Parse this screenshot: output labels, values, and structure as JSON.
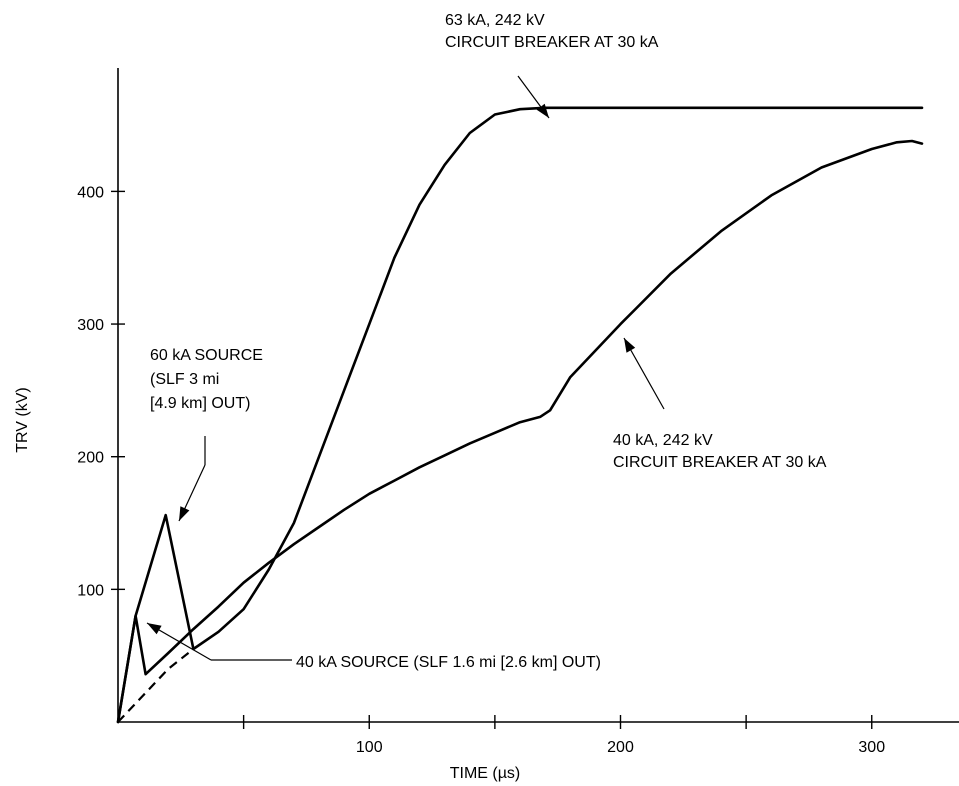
{
  "chart_data": {
    "type": "line",
    "title": "",
    "xlabel": "TIME  (µs)",
    "ylabel": "TRV  (kV)",
    "xlim": [
      0,
      320
    ],
    "ylim": [
      0,
      470
    ],
    "x_ticks": [
      50,
      100,
      150,
      200,
      250,
      300
    ],
    "x_tick_labels": [
      "100",
      "200",
      "300"
    ],
    "x_tick_label_values": [
      100,
      200,
      300
    ],
    "y_ticks": [
      100,
      200,
      300,
      400
    ],
    "y_tick_labels": [
      "100",
      "200",
      "300",
      "400"
    ],
    "grid": false,
    "series": [
      {
        "id": "s63",
        "style": "solid",
        "x": [
          0,
          7,
          19,
          30,
          40,
          50,
          60,
          70,
          80,
          90,
          100,
          110,
          120,
          130,
          140,
          150,
          160,
          170,
          180,
          200,
          220,
          250,
          280,
          310,
          320
        ],
        "y": [
          0,
          80,
          156,
          55,
          68,
          85,
          115,
          150,
          200,
          250,
          300,
          350,
          390,
          420,
          444,
          458,
          462,
          463,
          463,
          463,
          463,
          463,
          463,
          463,
          463
        ]
      },
      {
        "id": "s40",
        "style": "solid",
        "x": [
          0,
          7,
          11,
          20,
          30,
          40,
          50,
          60,
          70,
          80,
          90,
          100,
          110,
          120,
          130,
          140,
          150,
          160,
          168,
          172,
          180,
          190,
          200,
          220,
          240,
          260,
          280,
          300,
          310,
          316,
          320
        ],
        "y": [
          0,
          80,
          36,
          52,
          70,
          87,
          105,
          120,
          134,
          147,
          160,
          172,
          182,
          192,
          201,
          210,
          218,
          226,
          230,
          235,
          260,
          280,
          300,
          338,
          370,
          397,
          418,
          432,
          437,
          438,
          436
        ]
      },
      {
        "id": "dashed",
        "style": "dashed",
        "x": [
          0,
          10,
          20,
          30
        ],
        "y": [
          0,
          20,
          40,
          55
        ]
      }
    ],
    "annotations": [
      {
        "lines": [
          "63 kA, 242 kV",
          "CIRCUIT BREAKER AT 30 kA"
        ]
      },
      {
        "lines": [
          "40 kA, 242 kV",
          "CIRCUIT BREAKER AT 30 kA"
        ]
      },
      {
        "lines": [
          "60 kA SOURCE",
          "(SLF 3 mi",
          "[4.9 km] OUT)"
        ]
      },
      {
        "lines": [
          "40 kA SOURCE (SLF 1.6 mi [2.6 km] OUT)"
        ]
      }
    ]
  }
}
